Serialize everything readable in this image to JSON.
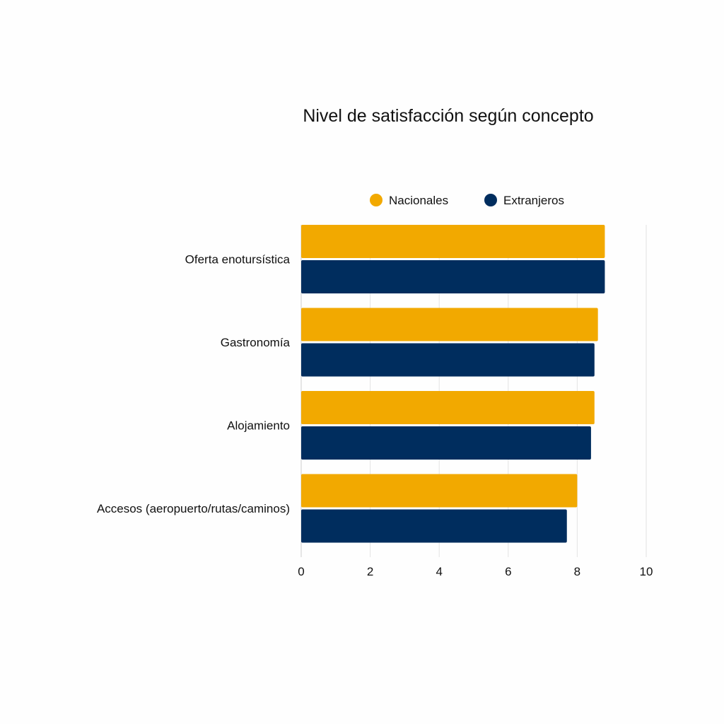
{
  "chart_data": {
    "type": "bar",
    "orientation": "horizontal",
    "title": "Nivel de satisfacción según concepto",
    "xlabel": "",
    "ylabel": "",
    "categories": [
      "Oferta enotursística",
      "Gastronomía",
      "Alojamiento",
      "Accesos (aeropuerto/rutas/caminos)"
    ],
    "series": [
      {
        "name": "Nacionales",
        "color": "#f2a900",
        "values": [
          8.8,
          8.6,
          8.5,
          8.0
        ]
      },
      {
        "name": "Extranjeros",
        "color": "#002d5e",
        "values": [
          8.8,
          8.5,
          8.4,
          7.7
        ]
      }
    ],
    "xlim": [
      0,
      10
    ],
    "x_ticks": [
      "0",
      "2",
      "4",
      "6",
      "8",
      "10"
    ],
    "grid": true,
    "legend_position": "top"
  }
}
